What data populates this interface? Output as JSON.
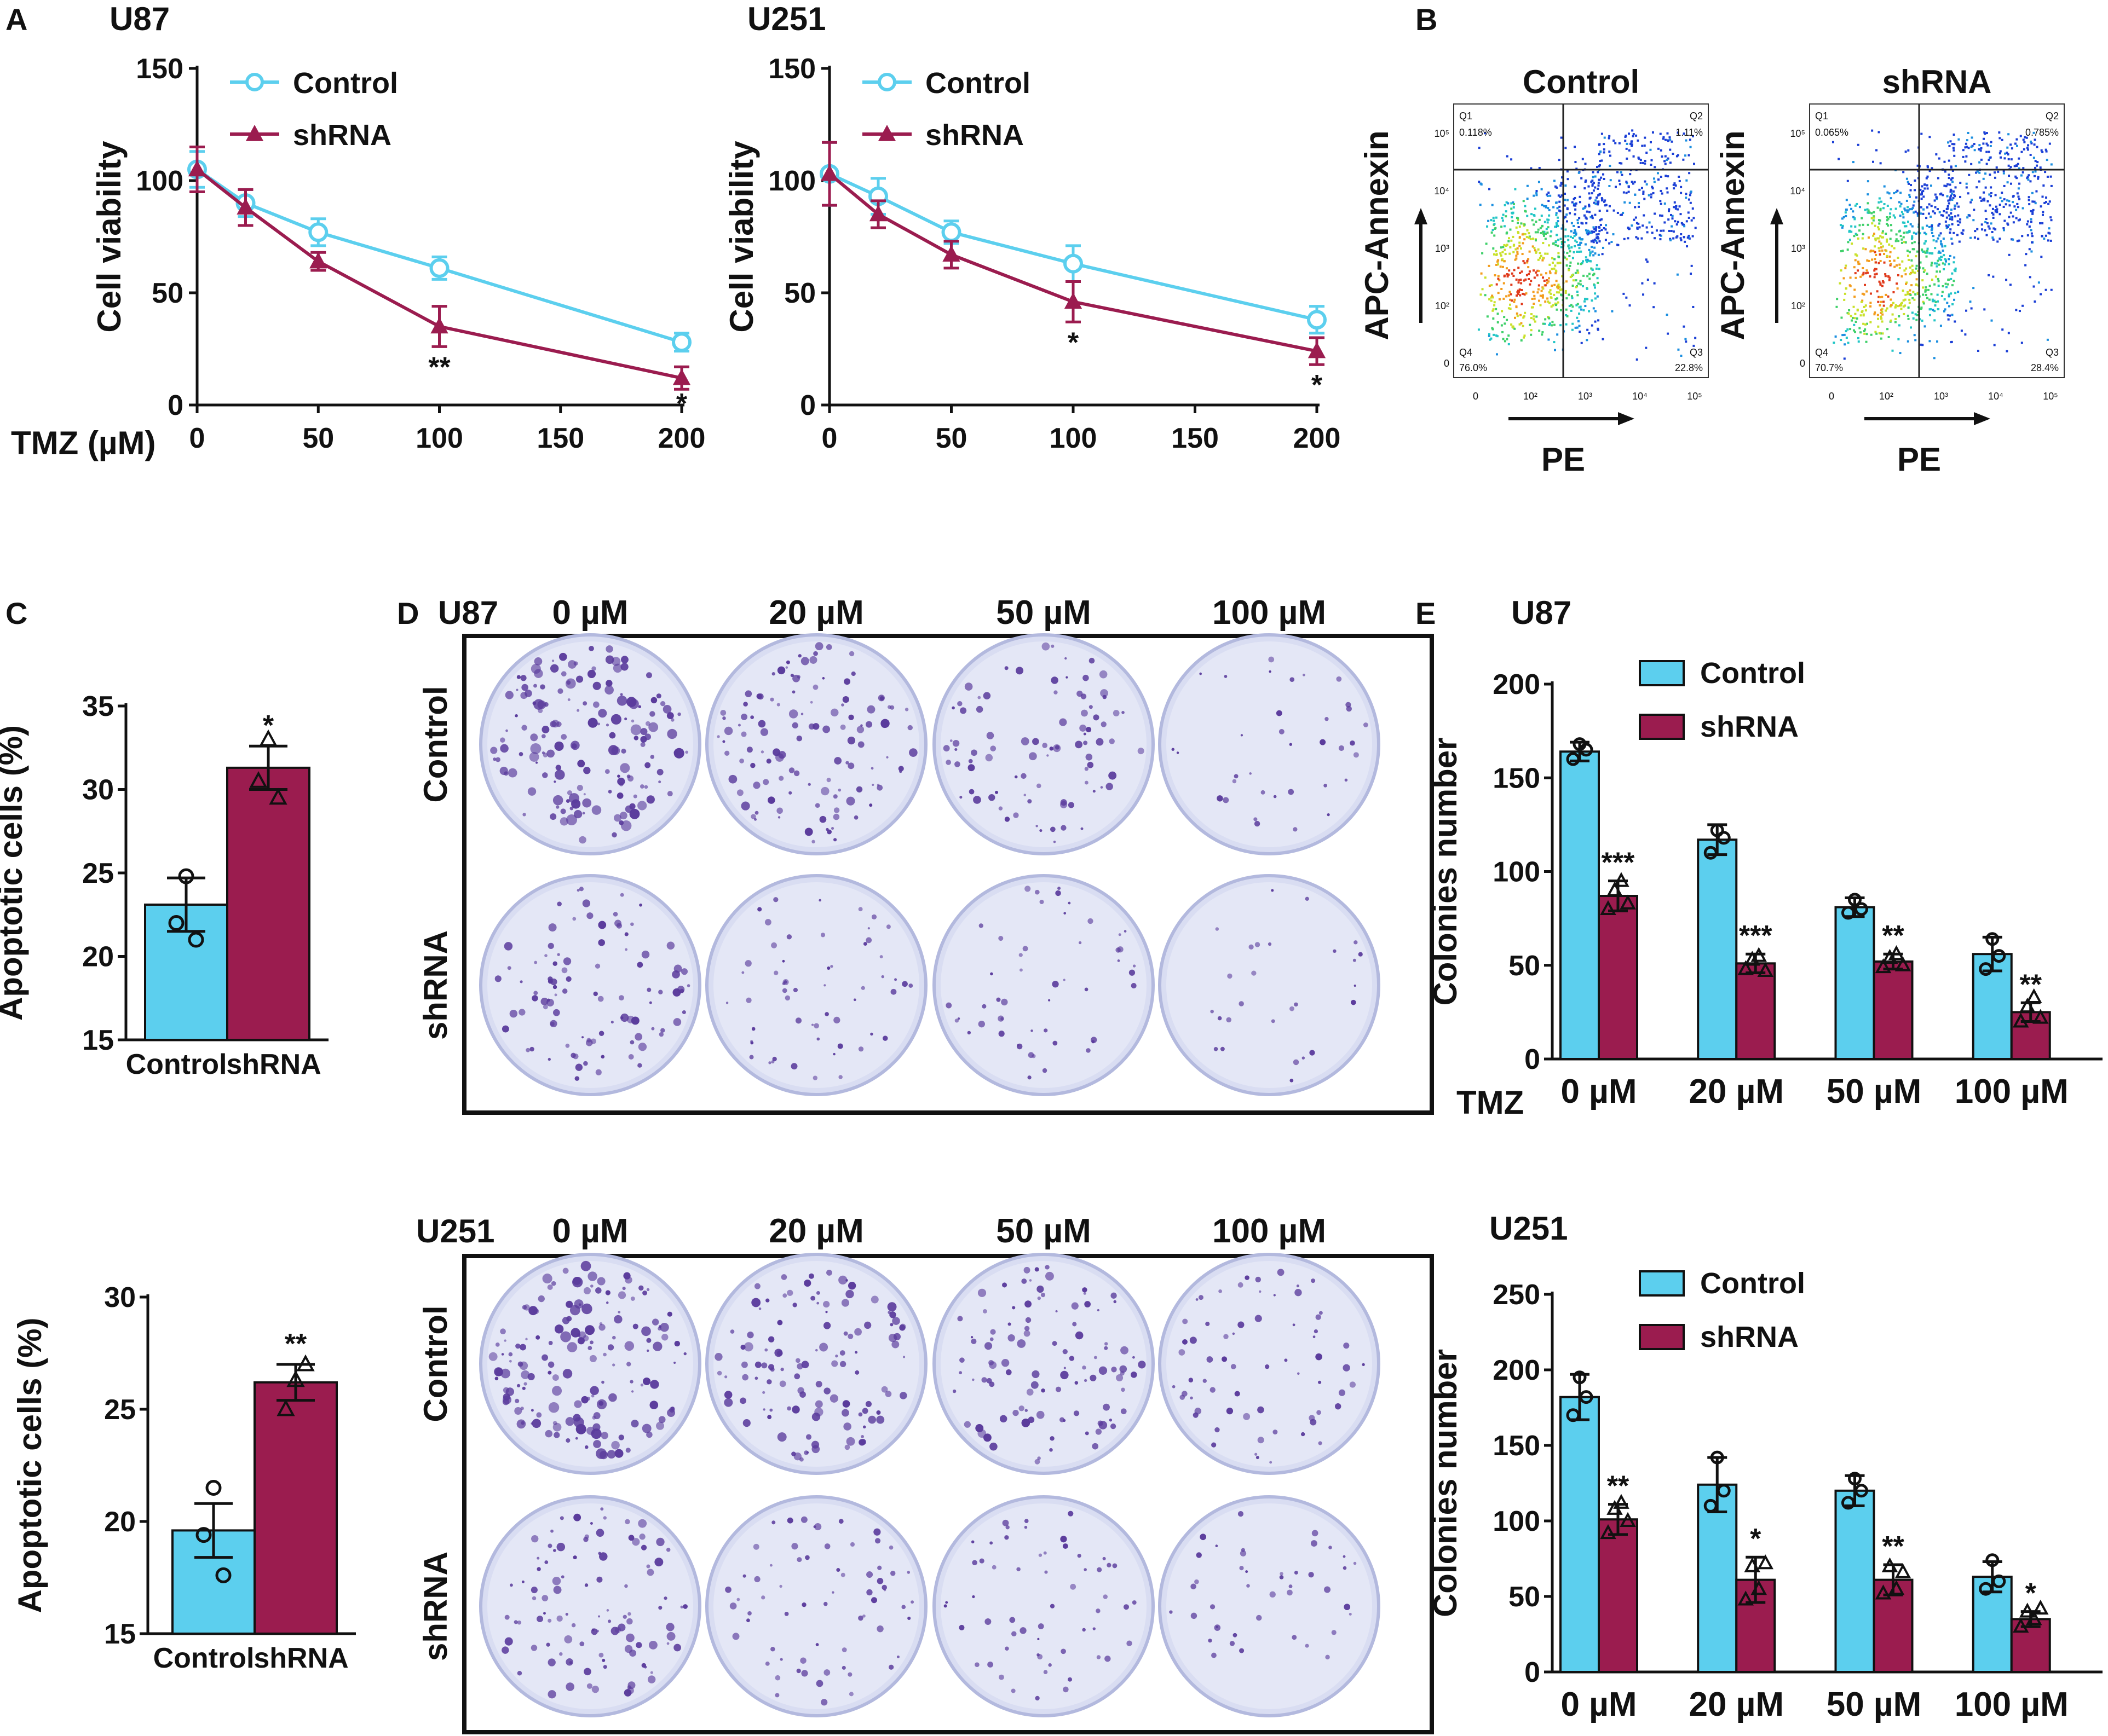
{
  "colors": {
    "control": "#5ccfee",
    "shrna": "#9b1c4f",
    "axis": "#111111",
    "plate": "#d9ddf2",
    "colony": "#5a3b9c"
  },
  "panel_labels": {
    "a": "A",
    "b": "B",
    "c": "C",
    "d": "D",
    "e": "E"
  },
  "panel_a": {
    "x_prefix": "TMZ (µM)",
    "x_ticks": [
      "0",
      "50",
      "100",
      "150",
      "200"
    ],
    "y_ticks": [
      "0",
      "50",
      "100",
      "150"
    ]
  },
  "panel_b": {
    "y_label": "APC-Annexin",
    "x_label": "PE",
    "plots": [
      {
        "title": "Control",
        "q1_label": "Q1",
        "q1_value": "0.118%",
        "q2_label": "Q2",
        "q2_value": "1.11%",
        "q3_label": "Q3",
        "q3_value": "22.8%",
        "q4_label": "Q4",
        "q4_value": "76.0%"
      },
      {
        "title": "shRNA",
        "q1_label": "Q1",
        "q1_value": "0.065%",
        "q2_label": "Q2",
        "q2_value": "0.785%",
        "q3_label": "Q3",
        "q3_value": "28.4%",
        "q4_label": "Q4",
        "q4_value": "70.7%"
      }
    ],
    "x_ticks": [
      "0",
      "10²",
      "10³",
      "10⁴",
      "10⁵"
    ],
    "y_ticks": [
      "0",
      "10²",
      "10³",
      "10⁴",
      "10⁵"
    ]
  },
  "panel_d": {
    "blocks": [
      {
        "cell_line": "U87",
        "concentrations": [
          "0 µM",
          "20 µM",
          "50 µM",
          "100 µM"
        ],
        "rows": [
          "Control",
          "shRNA"
        ],
        "relative_colony_density": {
          "Control": [
            1.0,
            0.7,
            0.5,
            0.15
          ],
          "shRNA": [
            0.55,
            0.3,
            0.25,
            0.1
          ]
        }
      },
      {
        "cell_line": "U251",
        "concentrations": [
          "0 µM",
          "20 µM",
          "50 µM",
          "100 µM"
        ],
        "rows": [
          "Control",
          "shRNA"
        ],
        "relative_colony_density": {
          "Control": [
            1.0,
            0.7,
            0.6,
            0.35
          ],
          "shRNA": [
            0.6,
            0.35,
            0.3,
            0.2
          ]
        }
      }
    ]
  },
  "panel_e_x_prefix": "TMZ",
  "chart_data": [
    {
      "id": "A-U87",
      "type": "line",
      "title": "U87",
      "xlabel": "TMZ (µM)",
      "ylabel": "Cell viability",
      "x": [
        0,
        20,
        50,
        100,
        200
      ],
      "xlim": [
        0,
        200
      ],
      "ylim": [
        0,
        150
      ],
      "series": [
        {
          "name": "Control",
          "values": [
            105,
            90,
            77,
            61,
            28
          ],
          "errors": [
            8,
            6,
            6,
            5,
            4
          ],
          "marker": "circle"
        },
        {
          "name": "shRNA",
          "values": [
            105,
            88,
            64,
            35,
            12
          ],
          "errors": [
            10,
            8,
            4,
            9,
            5
          ],
          "marker": "triangle"
        }
      ],
      "annotations": [
        {
          "x": 100,
          "text": "**"
        },
        {
          "x": 200,
          "text": "*"
        }
      ],
      "legend": "top-right"
    },
    {
      "id": "A-U251",
      "type": "line",
      "title": "U251",
      "xlabel": "",
      "ylabel": "Cell viability",
      "x": [
        0,
        20,
        50,
        100,
        200
      ],
      "xlim": [
        0,
        200
      ],
      "ylim": [
        0,
        150
      ],
      "series": [
        {
          "name": "Control",
          "values": [
            103,
            93,
            77,
            63,
            38
          ],
          "errors": [
            14,
            8,
            5,
            8,
            6
          ],
          "marker": "circle"
        },
        {
          "name": "shRNA",
          "values": [
            103,
            85,
            67,
            46,
            24
          ],
          "errors": [
            14,
            6,
            6,
            9,
            6
          ],
          "marker": "triangle"
        }
      ],
      "annotations": [
        {
          "x": 100,
          "text": "*"
        },
        {
          "x": 200,
          "text": "*"
        }
      ],
      "legend": "top-right"
    },
    {
      "id": "C-U87",
      "type": "bar",
      "title": "",
      "ylabel": "Apoptotic cells (%)",
      "categories": [
        "Control",
        "shRNA"
      ],
      "ylim": [
        15,
        35
      ],
      "yticks": [
        15,
        20,
        25,
        30,
        35
      ],
      "values": [
        23.1,
        31.3
      ],
      "errors": [
        1.6,
        1.3
      ],
      "points": [
        [
          22.0,
          24.8,
          21.0
        ],
        [
          30.5,
          33.0,
          29.5
        ]
      ],
      "annotations": [
        "",
        "*"
      ]
    },
    {
      "id": "C-U251",
      "type": "bar",
      "title": "",
      "ylabel": "Apoptotic cells (%)",
      "categories": [
        "Control",
        "shRNA"
      ],
      "ylim": [
        15,
        30
      ],
      "yticks": [
        15,
        20,
        25,
        30
      ],
      "values": [
        19.6,
        26.2
      ],
      "errors": [
        1.2,
        0.8
      ],
      "points": [
        [
          19.4,
          21.5,
          17.6
        ],
        [
          25.0,
          26.3,
          27.0
        ]
      ],
      "annotations": [
        "",
        "**"
      ]
    },
    {
      "id": "E-U87",
      "type": "bar",
      "title": "U87",
      "ylabel": "Colonies number",
      "categories": [
        "0 µM",
        "20 µM",
        "50 µM",
        "100 µM"
      ],
      "ylim": [
        0,
        200
      ],
      "yticks": [
        0,
        50,
        100,
        150,
        200
      ],
      "series": [
        {
          "name": "Control",
          "values": [
            164,
            117,
            81,
            56
          ],
          "errors": [
            5,
            8,
            5,
            9
          ],
          "points": [
            [
              160,
              168,
              165
            ],
            [
              110,
              122,
              118
            ],
            [
              78,
              85,
              80
            ],
            [
              48,
              64,
              55
            ]
          ]
        },
        {
          "name": "shRNA",
          "values": [
            87,
            51,
            52,
            25
          ],
          "errors": [
            8,
            5,
            4,
            5
          ],
          "points": [
            [
              80,
              90,
              95,
              83
            ],
            [
              48,
              53,
              55,
              47
            ],
            [
              49,
              54,
              56,
              50
            ],
            [
              20,
              28,
              33,
              22
            ]
          ]
        }
      ],
      "annotations": [
        "***",
        "***",
        "**",
        "**"
      ],
      "legend": "top-right"
    },
    {
      "id": "E-U251",
      "type": "bar",
      "title": "U251",
      "ylabel": "Colonies number",
      "categories": [
        "0 µM",
        "20 µM",
        "50 µM",
        "100 µM"
      ],
      "ylim": [
        0,
        250
      ],
      "yticks": [
        0,
        50,
        100,
        150,
        200,
        250
      ],
      "series": [
        {
          "name": "Control",
          "values": [
            182,
            124,
            120,
            63
          ],
          "errors": [
            15,
            18,
            10,
            10
          ],
          "points": [
            [
              170,
              195,
              182
            ],
            [
              110,
              142,
              120
            ],
            [
              112,
              128,
              120
            ],
            [
              55,
              74,
              60
            ]
          ]
        },
        {
          "name": "shRNA",
          "values": [
            101,
            61,
            61,
            35
          ],
          "errors": [
            10,
            15,
            10,
            5
          ],
          "points": [
            [
              92,
              108,
              112,
              100
            ],
            [
              48,
              70,
              55,
              72
            ],
            [
              52,
              70,
              55,
              66
            ],
            [
              30,
              40,
              35,
              42
            ]
          ]
        }
      ],
      "annotations": [
        "**",
        "*",
        "**",
        "*"
      ],
      "legend": "top-right"
    }
  ]
}
